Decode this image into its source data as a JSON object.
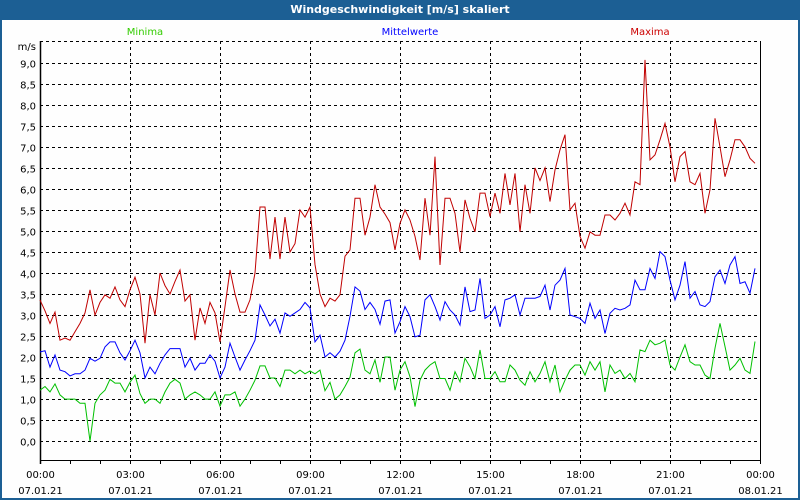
{
  "window": {
    "title": "Windgeschwindigkeit [m/s] skaliert"
  },
  "chart_data": {
    "type": "line",
    "title": "Windgeschwindigkeit [m/s] skaliert",
    "ylabel": "m/s",
    "ylim": [
      -0.45,
      9.52
    ],
    "xlim_hours": [
      0,
      24
    ],
    "grid": true,
    "legend_placement": "top",
    "y_ticks": [
      "0,0",
      "0,5",
      "1,0",
      "1,5",
      "2,0",
      "2,5",
      "3,0",
      "3,5",
      "4,0",
      "4,5",
      "5,0",
      "5,5",
      "6,0",
      "6,5",
      "7,0",
      "7,5",
      "8,0",
      "8,5",
      "9,0"
    ],
    "x_ticks": [
      {
        "time": "00:00",
        "date": "07.01.21"
      },
      {
        "time": "03:00",
        "date": "07.01.21"
      },
      {
        "time": "06:00",
        "date": "07.01.21"
      },
      {
        "time": "09:00",
        "date": "07.01.21"
      },
      {
        "time": "12:00",
        "date": "07.01.21"
      },
      {
        "time": "15:00",
        "date": "07.01.21"
      },
      {
        "time": "18:00",
        "date": "07.01.21"
      },
      {
        "time": "21:00",
        "date": "07.01.21"
      },
      {
        "time": "00:00",
        "date": "08.01.21"
      }
    ],
    "interval_minutes": 10,
    "series": [
      {
        "name": "Minima",
        "color": "#00c000",
        "label_color": "#33cc00",
        "values": [
          1.21,
          1.3,
          1.17,
          1.36,
          1.1,
          1.0,
          1.0,
          1.0,
          0.9,
          0.9,
          0.0,
          0.9,
          1.1,
          1.21,
          1.47,
          1.38,
          1.38,
          1.17,
          1.4,
          1.57,
          1.13,
          0.9,
          1.0,
          1.0,
          0.9,
          1.17,
          1.38,
          1.47,
          1.38,
          1.0,
          1.1,
          1.17,
          1.1,
          1.0,
          1.0,
          1.17,
          0.83,
          1.1,
          1.1,
          1.17,
          0.83,
          1.0,
          1.21,
          1.45,
          1.79,
          1.79,
          1.5,
          1.5,
          1.3,
          1.69,
          1.69,
          1.6,
          1.69,
          1.6,
          1.67,
          1.6,
          1.69,
          1.2,
          1.4,
          1.0,
          1.1,
          1.3,
          1.52,
          2.1,
          2.19,
          1.69,
          1.6,
          1.93,
          1.4,
          2.0,
          2.0,
          1.21,
          1.69,
          1.89,
          1.53,
          0.82,
          1.45,
          1.69,
          1.81,
          1.89,
          1.49,
          1.49,
          1.21,
          1.65,
          1.41,
          1.97,
          1.77,
          1.49,
          2.17,
          1.49,
          1.49,
          1.65,
          1.41,
          1.41,
          1.81,
          1.69,
          1.45,
          1.33,
          1.65,
          1.41,
          1.61,
          1.89,
          1.41,
          1.81,
          1.17,
          1.45,
          1.69,
          1.81,
          1.81,
          1.57,
          1.89,
          1.69,
          1.89,
          1.17,
          1.81,
          1.61,
          1.69,
          1.49,
          1.61,
          1.41,
          2.17,
          2.13,
          2.4,
          2.29,
          2.33,
          2.4,
          1.81,
          1.69,
          2.0,
          2.29,
          1.89,
          1.81,
          1.81,
          1.57,
          1.49,
          2.21,
          2.8,
          2.25,
          1.69,
          1.81,
          1.97,
          1.69,
          1.61,
          2.37
        ]
      },
      {
        "name": "Mittelwerte",
        "color": "#0000ff",
        "label_color": "#0000ff",
        "values": [
          2.12,
          2.15,
          1.76,
          2.05,
          1.69,
          1.65,
          1.55,
          1.6,
          1.6,
          1.69,
          1.97,
          1.9,
          1.97,
          2.24,
          2.36,
          2.36,
          2.1,
          1.93,
          2.15,
          2.4,
          2.1,
          1.5,
          1.76,
          1.6,
          1.85,
          2.05,
          2.2,
          2.2,
          2.2,
          1.76,
          1.97,
          1.69,
          1.85,
          1.85,
          2.05,
          1.9,
          1.5,
          1.76,
          2.33,
          2.0,
          1.69,
          1.93,
          2.15,
          2.4,
          3.24,
          3.0,
          2.74,
          2.9,
          2.57,
          3.05,
          2.97,
          3.05,
          3.13,
          3.3,
          3.17,
          2.36,
          2.52,
          2.0,
          2.1,
          2.0,
          2.14,
          2.4,
          2.97,
          3.67,
          3.57,
          3.13,
          3.3,
          3.13,
          2.78,
          3.33,
          3.36,
          2.57,
          2.84,
          3.2,
          2.96,
          2.48,
          2.52,
          3.36,
          3.48,
          3.2,
          2.88,
          3.32,
          3.12,
          3.0,
          2.76,
          3.67,
          3.08,
          3.12,
          3.87,
          2.92,
          3.0,
          3.2,
          2.72,
          3.36,
          3.4,
          3.48,
          3.0,
          3.4,
          3.4,
          3.4,
          3.44,
          3.71,
          3.12,
          3.71,
          3.83,
          4.11,
          3.0,
          2.96,
          2.92,
          2.8,
          3.28,
          2.92,
          3.12,
          2.56,
          3.04,
          3.16,
          3.12,
          3.16,
          3.24,
          3.83,
          3.6,
          3.6,
          4.11,
          3.87,
          4.51,
          4.39,
          3.83,
          3.36,
          3.71,
          4.27,
          3.4,
          3.56,
          3.24,
          3.2,
          3.32,
          3.91,
          4.07,
          3.75,
          4.19,
          4.39,
          3.75,
          3.79,
          3.52,
          4.11
        ]
      },
      {
        "name": "Maxima",
        "color": "#c00000",
        "label_color": "#cc0000",
        "values": [
          3.36,
          3.1,
          2.8,
          3.07,
          2.4,
          2.45,
          2.4,
          2.6,
          2.8,
          3.05,
          3.6,
          3.0,
          3.3,
          3.48,
          3.4,
          3.67,
          3.36,
          3.2,
          3.6,
          3.9,
          3.5,
          2.33,
          3.48,
          3.0,
          4.0,
          3.7,
          3.5,
          3.8,
          4.07,
          3.33,
          3.48,
          2.4,
          3.17,
          2.8,
          3.3,
          3.05,
          2.36,
          3.2,
          4.07,
          3.5,
          3.07,
          3.07,
          3.36,
          4.0,
          5.57,
          5.57,
          4.33,
          5.33,
          4.33,
          5.33,
          4.5,
          4.7,
          5.5,
          5.33,
          5.57,
          4.2,
          3.5,
          3.2,
          3.4,
          3.33,
          3.48,
          4.4,
          4.55,
          5.78,
          5.78,
          4.9,
          5.33,
          6.1,
          5.57,
          5.4,
          5.2,
          4.55,
          5.18,
          5.5,
          5.26,
          4.87,
          4.31,
          5.78,
          4.9,
          6.77,
          4.19,
          5.78,
          5.78,
          5.42,
          4.5,
          5.74,
          5.3,
          4.98,
          5.9,
          5.9,
          5.34,
          5.9,
          5.42,
          6.37,
          5.62,
          6.37,
          4.98,
          6.1,
          5.42,
          6.5,
          6.2,
          6.5,
          5.7,
          6.45,
          6.93,
          7.29,
          5.5,
          5.66,
          4.87,
          4.59,
          4.98,
          4.9,
          4.9,
          5.38,
          5.38,
          5.26,
          5.42,
          5.66,
          5.38,
          6.17,
          6.1,
          9.07,
          6.69,
          6.81,
          7.17,
          7.56,
          7.0,
          6.17,
          6.77,
          6.89,
          6.17,
          6.1,
          6.37,
          5.42,
          5.98,
          7.68,
          7.0,
          6.29,
          6.69,
          7.17,
          7.17,
          7.0,
          6.73,
          6.61
        ]
      }
    ]
  }
}
